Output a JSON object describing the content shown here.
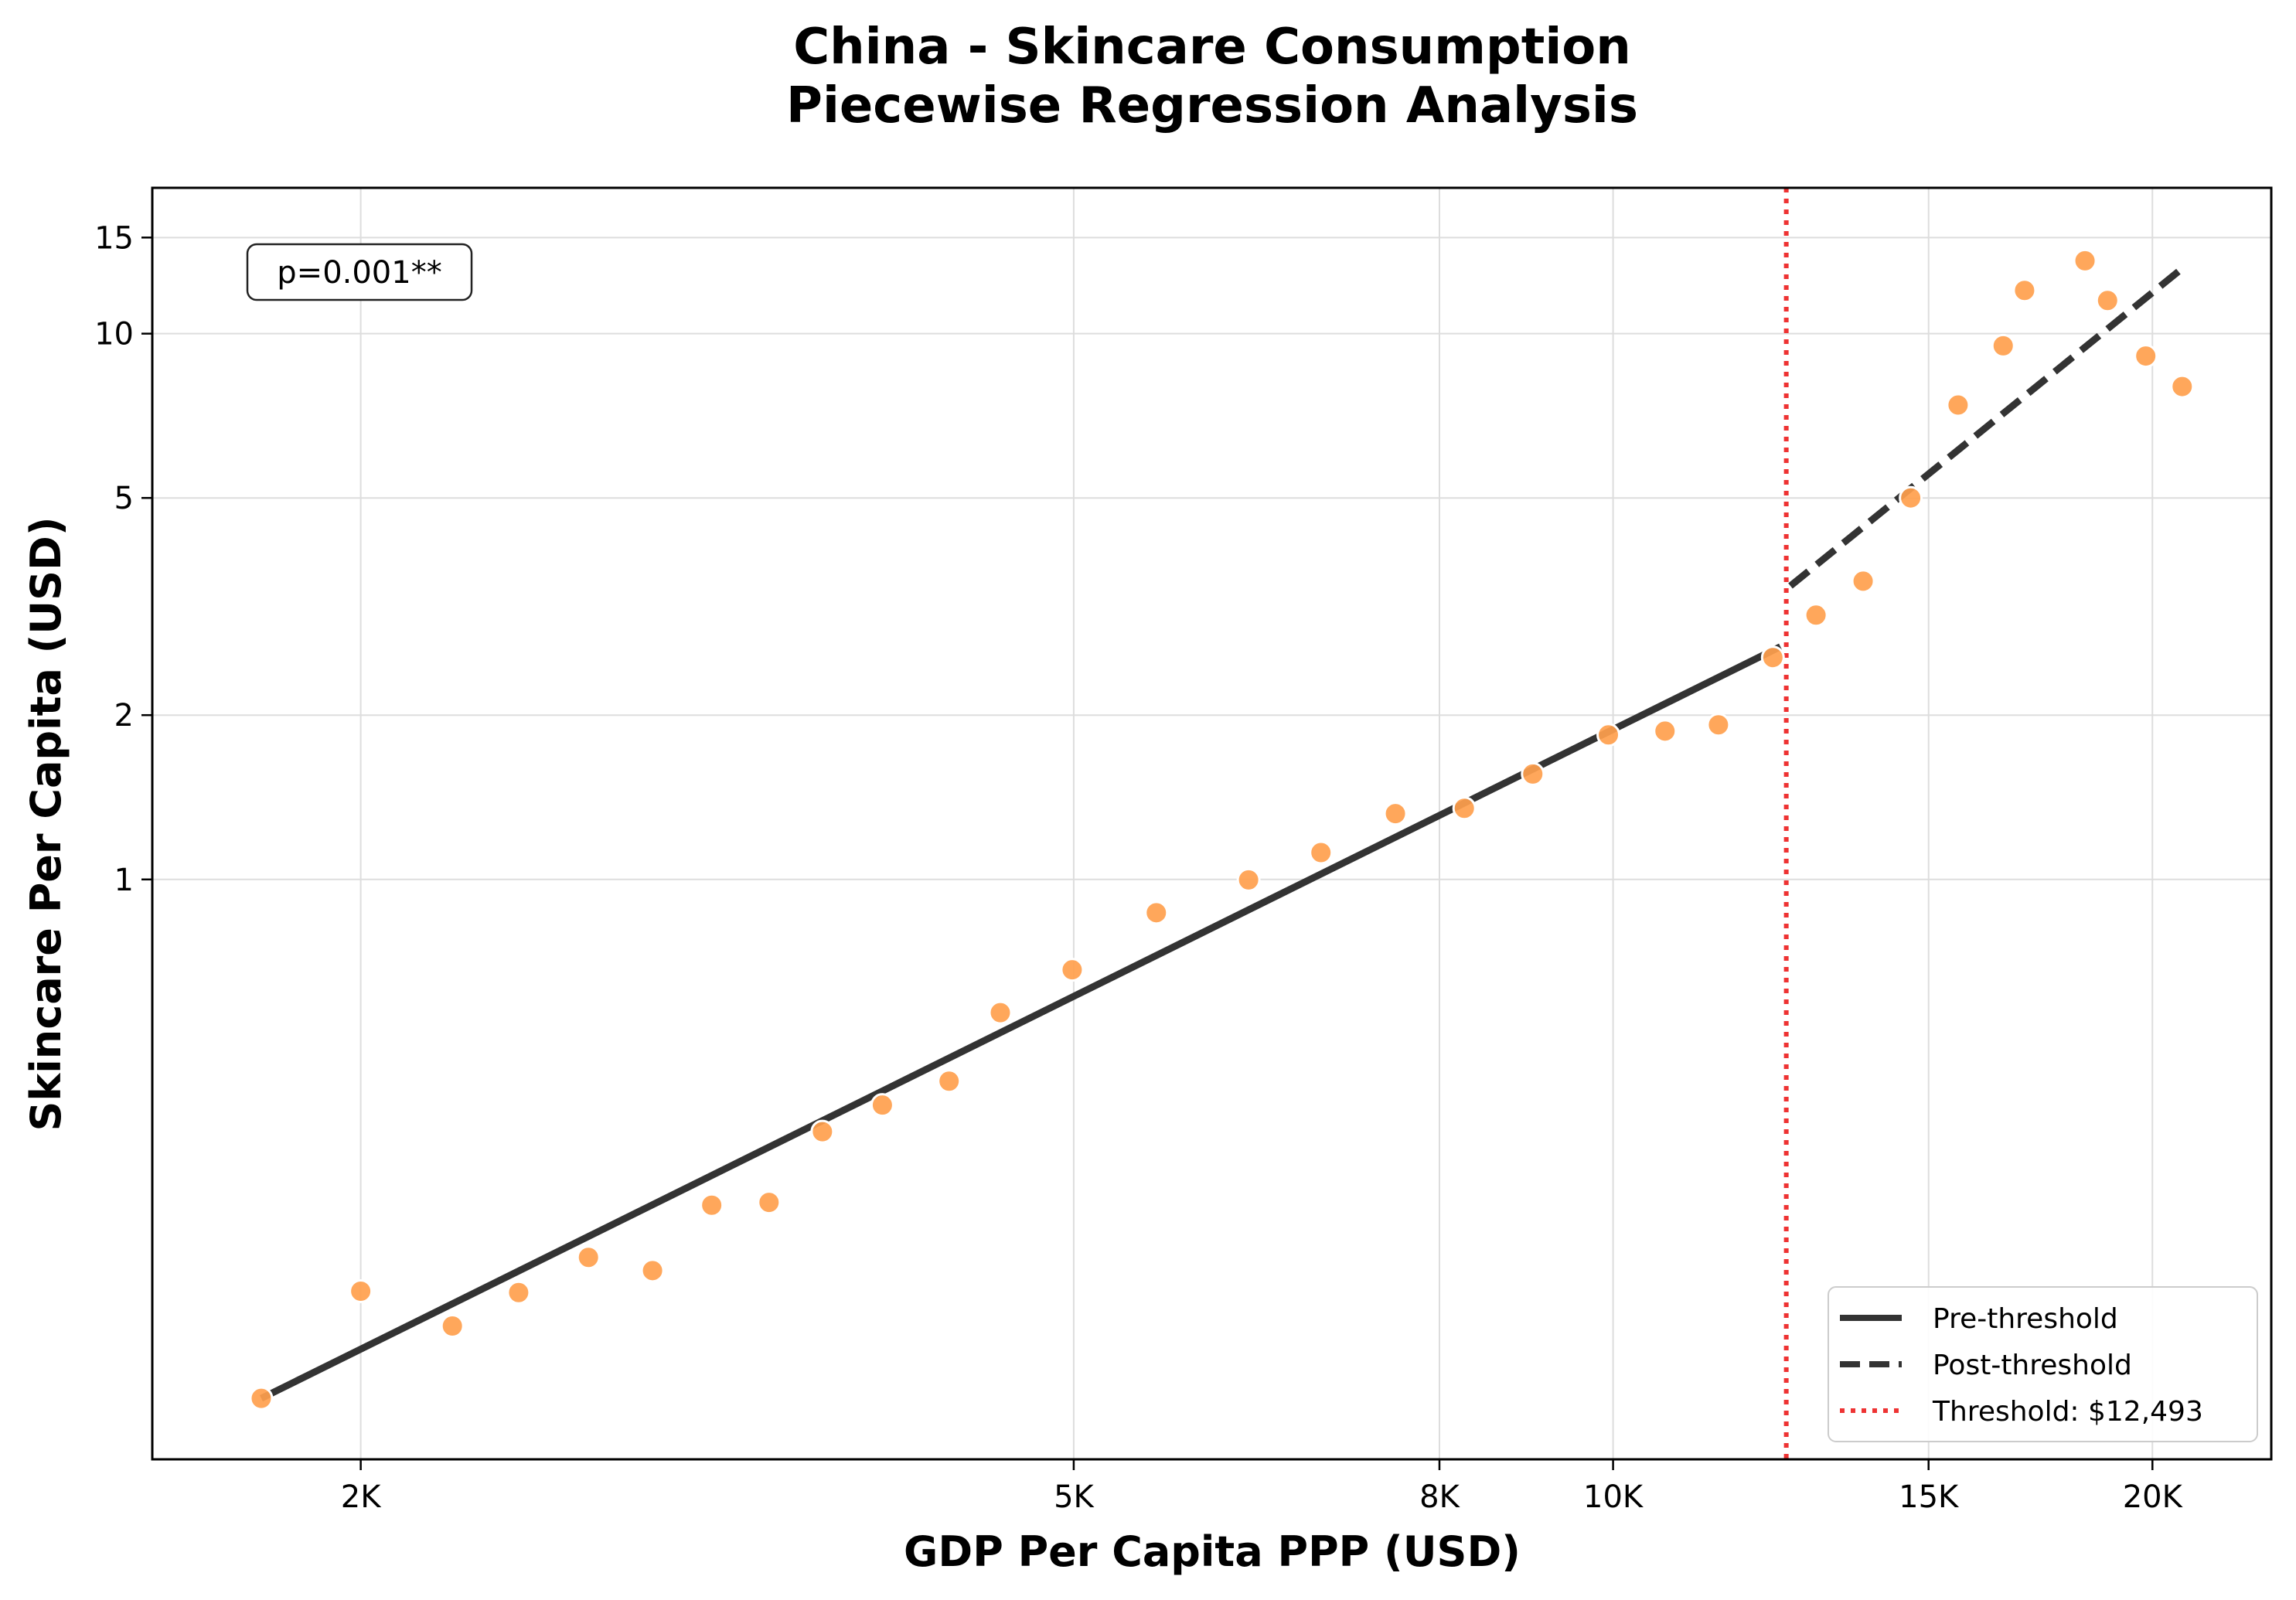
{
  "chart_data": {
    "type": "scatter",
    "title_lines": [
      "China - Skincare Consumption",
      "Piecewise Regression Analysis"
    ],
    "xlabel": "GDP Per Capita PPP (USD)",
    "ylabel": "Skincare Per Capita (USD)",
    "x_scale": "log",
    "y_scale": "log",
    "xlim": [
      1530,
      23300
    ],
    "ylim": [
      0.0866,
      18.5
    ],
    "x_ticks": [
      {
        "value": 2000,
        "label": "2K"
      },
      {
        "value": 5000,
        "label": "5K"
      },
      {
        "value": 8000,
        "label": "8K"
      },
      {
        "value": 10000,
        "label": "10K"
      },
      {
        "value": 15000,
        "label": "15K"
      },
      {
        "value": 20000,
        "label": "20K"
      }
    ],
    "y_ticks": [
      {
        "value": 1,
        "label": "1"
      },
      {
        "value": 2,
        "label": "2"
      },
      {
        "value": 5,
        "label": "5"
      },
      {
        "value": 10,
        "label": "10"
      },
      {
        "value": 15,
        "label": "15"
      }
    ],
    "grid": true,
    "point_color": "#ffa04d",
    "line_color": "#333333",
    "threshold_color": "#ee3333",
    "points": [
      {
        "x": 1760,
        "y": 0.112
      },
      {
        "x": 2000,
        "y": 0.176
      },
      {
        "x": 2250,
        "y": 0.152
      },
      {
        "x": 2450,
        "y": 0.175
      },
      {
        "x": 2680,
        "y": 0.203
      },
      {
        "x": 2910,
        "y": 0.192
      },
      {
        "x": 3140,
        "y": 0.253
      },
      {
        "x": 3380,
        "y": 0.256
      },
      {
        "x": 3620,
        "y": 0.345
      },
      {
        "x": 3910,
        "y": 0.386
      },
      {
        "x": 4260,
        "y": 0.427
      },
      {
        "x": 4550,
        "y": 0.57
      },
      {
        "x": 4990,
        "y": 0.683
      },
      {
        "x": 5560,
        "y": 0.869
      },
      {
        "x": 6260,
        "y": 0.998
      },
      {
        "x": 6870,
        "y": 1.12
      },
      {
        "x": 7560,
        "y": 1.32
      },
      {
        "x": 8260,
        "y": 1.35
      },
      {
        "x": 9020,
        "y": 1.56
      },
      {
        "x": 9940,
        "y": 1.84
      },
      {
        "x": 10690,
        "y": 1.87
      },
      {
        "x": 11450,
        "y": 1.92
      },
      {
        "x": 12280,
        "y": 2.55
      },
      {
        "x": 12980,
        "y": 3.05
      },
      {
        "x": 13790,
        "y": 3.52
      },
      {
        "x": 14660,
        "y": 5.0
      },
      {
        "x": 15580,
        "y": 7.4
      },
      {
        "x": 16510,
        "y": 9.5
      },
      {
        "x": 16970,
        "y": 12.0
      },
      {
        "x": 18340,
        "y": 13.6
      },
      {
        "x": 18880,
        "y": 11.5
      },
      {
        "x": 19830,
        "y": 9.1
      },
      {
        "x": 20780,
        "y": 8.0
      }
    ],
    "pre_threshold_line": {
      "x": [
        1760,
        12400
      ],
      "y": [
        0.112,
        2.67
      ]
    },
    "post_threshold_line": {
      "x": [
        12560,
        20800
      ],
      "y": [
        3.45,
        13.2
      ]
    },
    "threshold_x": 12493,
    "legend": {
      "placement": "lower-right",
      "entries": [
        {
          "label": "Pre-threshold",
          "style": "solid"
        },
        {
          "label": "Post-threshold",
          "style": "dashed"
        },
        {
          "label": "Threshold: $12,493",
          "style": "dotted"
        }
      ]
    },
    "annotation": "p=0.001**"
  }
}
